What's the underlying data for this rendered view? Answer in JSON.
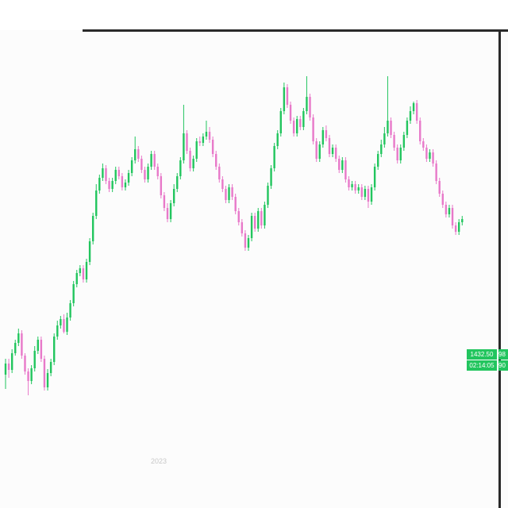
{
  "chart_data": {
    "type": "candlestick",
    "up_color": "#22c55e",
    "down_color": "#e879c9",
    "x_tick_labels": [
      "2023"
    ],
    "last_price": "1432.50",
    "countdown": "02:14:05",
    "last_price_edge": "98",
    "countdown_edge": "90",
    "candles": [
      [
        1,
        472,
        458,
        490,
        452
      ],
      [
        2,
        458,
        466,
        476,
        452
      ],
      [
        3,
        466,
        445,
        470,
        440
      ],
      [
        4,
        445,
        432,
        448,
        428
      ],
      [
        5,
        432,
        420,
        436,
        414
      ],
      [
        6,
        420,
        448,
        452,
        416
      ],
      [
        7,
        448,
        468,
        472,
        445
      ],
      [
        8,
        468,
        480,
        498,
        464
      ],
      [
        9,
        480,
        464,
        484,
        460
      ],
      [
        10,
        464,
        442,
        468,
        436
      ],
      [
        11,
        442,
        428,
        446,
        424
      ],
      [
        12,
        428,
        452,
        456,
        424
      ],
      [
        13,
        452,
        488,
        492,
        448
      ],
      [
        14,
        488,
        470,
        492,
        465
      ],
      [
        15,
        470,
        456,
        474,
        452
      ],
      [
        16,
        456,
        424,
        460,
        420
      ],
      [
        17,
        424,
        410,
        428,
        404
      ],
      [
        18,
        410,
        402,
        414,
        398
      ],
      [
        19,
        402,
        418,
        420,
        396
      ],
      [
        20,
        418,
        400,
        422,
        394
      ],
      [
        21,
        400,
        382,
        404,
        378
      ],
      [
        22,
        382,
        358,
        386,
        354
      ],
      [
        23,
        358,
        344,
        362,
        340
      ],
      [
        24,
        344,
        338,
        348,
        334
      ],
      [
        25,
        338,
        352,
        356,
        334
      ],
      [
        26,
        352,
        330,
        356,
        326
      ],
      [
        27,
        330,
        304,
        334,
        300
      ],
      [
        28,
        304,
        272,
        308,
        268
      ],
      [
        29,
        272,
        240,
        276,
        232
      ],
      [
        30,
        240,
        224,
        244,
        220
      ],
      [
        31,
        224,
        212,
        228,
        206
      ],
      [
        32,
        212,
        228,
        232,
        208
      ],
      [
        33,
        228,
        238,
        242,
        224
      ],
      [
        34,
        238,
        228,
        242,
        224
      ],
      [
        35,
        228,
        214,
        232,
        210
      ],
      [
        36,
        214,
        222,
        226,
        210
      ],
      [
        37,
        222,
        236,
        240,
        218
      ],
      [
        38,
        236,
        230,
        240,
        226
      ],
      [
        39,
        230,
        218,
        234,
        214
      ],
      [
        40,
        218,
        202,
        222,
        198
      ],
      [
        41,
        202,
        188,
        206,
        172
      ],
      [
        42,
        188,
        200,
        204,
        184
      ],
      [
        43,
        200,
        214,
        218,
        196
      ],
      [
        44,
        214,
        226,
        230,
        210
      ],
      [
        45,
        226,
        210,
        230,
        206
      ],
      [
        46,
        210,
        194,
        214,
        190
      ],
      [
        47,
        194,
        210,
        214,
        190
      ],
      [
        48,
        210,
        222,
        226,
        206
      ],
      [
        49,
        222,
        246,
        250,
        218
      ],
      [
        50,
        246,
        262,
        266,
        242
      ],
      [
        51,
        262,
        276,
        280,
        256
      ],
      [
        52,
        276,
        256,
        280,
        252
      ],
      [
        53,
        256,
        238,
        260,
        232
      ],
      [
        54,
        238,
        222,
        242,
        218
      ],
      [
        55,
        222,
        202,
        226,
        198
      ],
      [
        56,
        202,
        168,
        206,
        132
      ],
      [
        57,
        168,
        190,
        194,
        164
      ],
      [
        58,
        190,
        212,
        216,
        186
      ],
      [
        59,
        212,
        200,
        216,
        196
      ],
      [
        60,
        200,
        178,
        204,
        174
      ],
      [
        61,
        178,
        180,
        184,
        172
      ],
      [
        62,
        180,
        172,
        184,
        168
      ],
      [
        63,
        172,
        166,
        176,
        152
      ],
      [
        64,
        166,
        176,
        180,
        160
      ],
      [
        65,
        176,
        194,
        198,
        172
      ],
      [
        66,
        194,
        210,
        214,
        190
      ],
      [
        67,
        210,
        226,
        230,
        206
      ],
      [
        68,
        226,
        238,
        242,
        222
      ],
      [
        69,
        238,
        252,
        256,
        234
      ],
      [
        70,
        252,
        236,
        256,
        232
      ],
      [
        71,
        236,
        248,
        252,
        232
      ],
      [
        72,
        248,
        266,
        270,
        244
      ],
      [
        73,
        266,
        280,
        284,
        262
      ],
      [
        74,
        280,
        294,
        298,
        276
      ],
      [
        75,
        294,
        312,
        316,
        290
      ],
      [
        76,
        312,
        300,
        316,
        296
      ],
      [
        77,
        300,
        272,
        304,
        268
      ],
      [
        78,
        272,
        288,
        292,
        268
      ],
      [
        79,
        288,
        266,
        292,
        262
      ],
      [
        80,
        266,
        284,
        288,
        262
      ],
      [
        81,
        284,
        258,
        288,
        254
      ],
      [
        82,
        258,
        234,
        262,
        230
      ],
      [
        83,
        234,
        212,
        238,
        208
      ],
      [
        84,
        212,
        184,
        216,
        180
      ],
      [
        85,
        184,
        168,
        188,
        164
      ],
      [
        86,
        168,
        140,
        172,
        136
      ],
      [
        87,
        140,
        110,
        144,
        104
      ],
      [
        88,
        110,
        132,
        136,
        106
      ],
      [
        89,
        132,
        152,
        156,
        128
      ],
      [
        90,
        152,
        168,
        172,
        148
      ],
      [
        91,
        168,
        150,
        172,
        146
      ],
      [
        92,
        150,
        160,
        164,
        146
      ],
      [
        93,
        160,
        140,
        164,
        136
      ],
      [
        94,
        140,
        122,
        144,
        96
      ],
      [
        95,
        122,
        148,
        152,
        118
      ],
      [
        96,
        148,
        178,
        182,
        144
      ],
      [
        97,
        178,
        200,
        204,
        174
      ],
      [
        98,
        200,
        182,
        204,
        178
      ],
      [
        99,
        182,
        164,
        186,
        160
      ],
      [
        100,
        164,
        174,
        178,
        158
      ],
      [
        101,
        174,
        194,
        198,
        170
      ],
      [
        102,
        194,
        186,
        198,
        182
      ],
      [
        103,
        186,
        200,
        204,
        182
      ],
      [
        104,
        200,
        214,
        218,
        196
      ],
      [
        105,
        214,
        202,
        218,
        198
      ],
      [
        106,
        202,
        226,
        230,
        198
      ],
      [
        107,
        226,
        236,
        240,
        222
      ],
      [
        108,
        236,
        232,
        240,
        228
      ],
      [
        109,
        232,
        240,
        244,
        228
      ],
      [
        110,
        240,
        236,
        244,
        232
      ],
      [
        111,
        236,
        248,
        252,
        232
      ],
      [
        112,
        248,
        238,
        252,
        234
      ],
      [
        113,
        238,
        254,
        262,
        234
      ],
      [
        114,
        254,
        236,
        258,
        232
      ],
      [
        115,
        236,
        210,
        240,
        206
      ],
      [
        116,
        210,
        194,
        214,
        190
      ],
      [
        117,
        194,
        182,
        198,
        176
      ],
      [
        118,
        182,
        168,
        186,
        160
      ],
      [
        119,
        168,
        152,
        172,
        96
      ],
      [
        120,
        152,
        170,
        174,
        148
      ],
      [
        121,
        170,
        186,
        190,
        166
      ],
      [
        122,
        186,
        202,
        206,
        182
      ],
      [
        123,
        202,
        186,
        206,
        182
      ],
      [
        124,
        186,
        170,
        190,
        166
      ],
      [
        125,
        170,
        152,
        174,
        148
      ],
      [
        126,
        152,
        140,
        156,
        134
      ],
      [
        127,
        140,
        130,
        144,
        128
      ],
      [
        128,
        130,
        152,
        156,
        126
      ],
      [
        129,
        152,
        178,
        182,
        148
      ],
      [
        130,
        178,
        186,
        190,
        174
      ],
      [
        131,
        186,
        200,
        204,
        182
      ],
      [
        132,
        200,
        192,
        204,
        188
      ],
      [
        133,
        192,
        206,
        210,
        188
      ],
      [
        134,
        206,
        228,
        232,
        202
      ],
      [
        135,
        228,
        244,
        248,
        224
      ],
      [
        136,
        244,
        258,
        262,
        240
      ],
      [
        137,
        258,
        270,
        274,
        254
      ],
      [
        138,
        270,
        262,
        274,
        258
      ],
      [
        139,
        262,
        284,
        288,
        258
      ],
      [
        140,
        284,
        292,
        296,
        280
      ],
      [
        141,
        292,
        280,
        296,
        276
      ],
      [
        142,
        280,
        276,
        284,
        272
      ]
    ]
  }
}
